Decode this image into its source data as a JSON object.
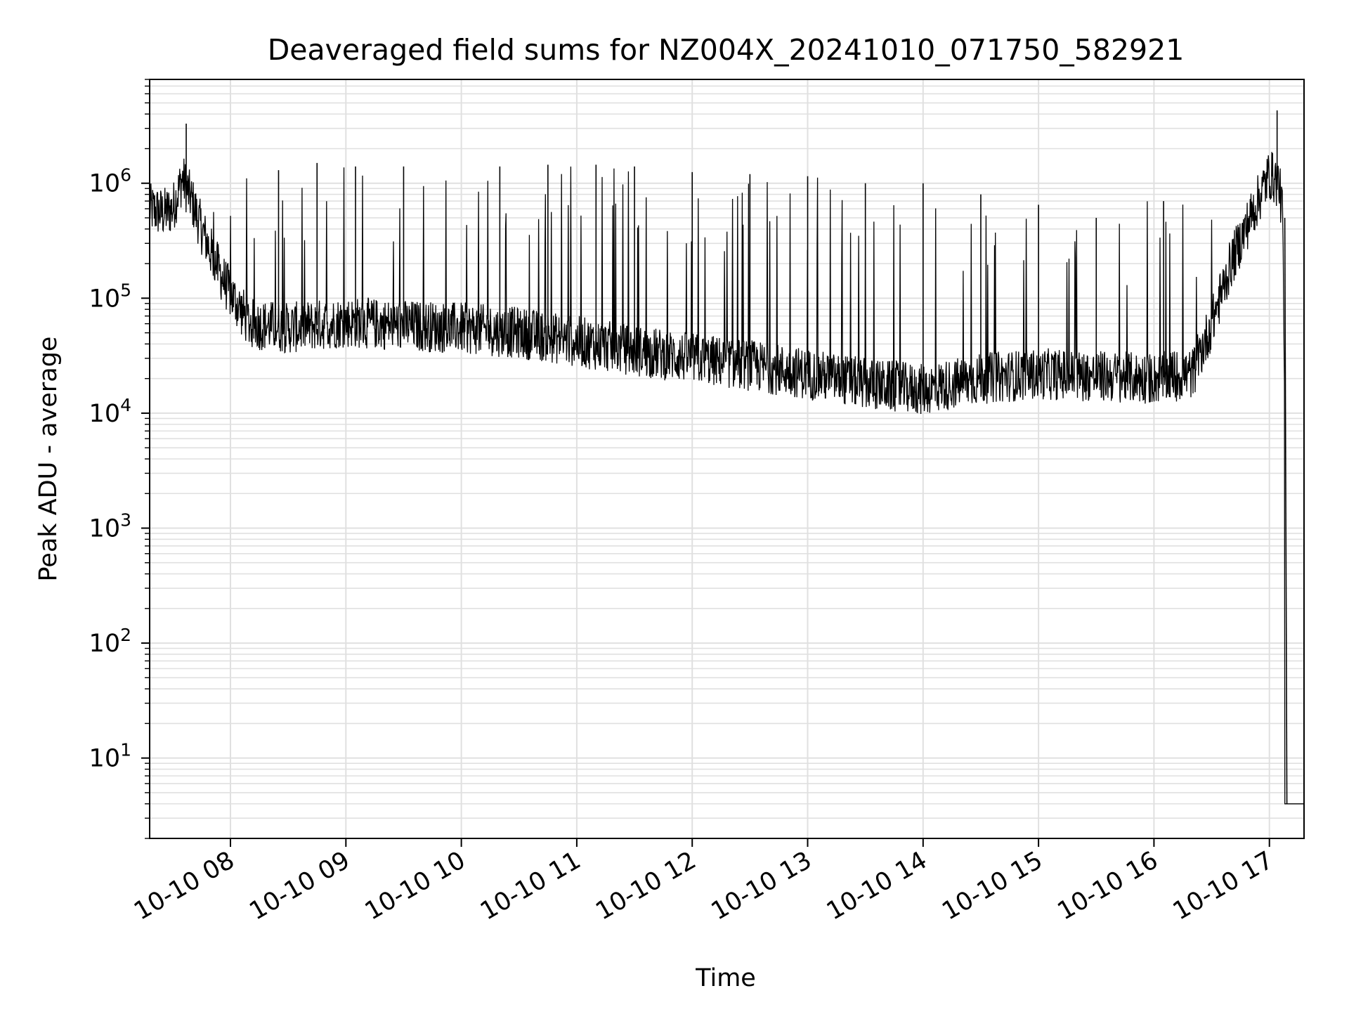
{
  "chart_data": {
    "type": "line",
    "title": "Deaveraged field sums for NZ004X_20241010_071750_582921",
    "xlabel": "Time",
    "ylabel": "Peak ADU - average",
    "yscale": "log",
    "xlim": [
      "2024-10-10 07:18",
      "2024-10-10 17:18"
    ],
    "ylim": [
      2,
      8000000
    ],
    "grid": "major and minor",
    "line_color": "#000000",
    "grid_color": "#e0e0e0",
    "x_ticks": [
      {
        "x": "2024-10-10 08:00",
        "label": "10-10 08"
      },
      {
        "x": "2024-10-10 09:00",
        "label": "10-10 09"
      },
      {
        "x": "2024-10-10 10:00",
        "label": "10-10 10"
      },
      {
        "x": "2024-10-10 11:00",
        "label": "10-10 11"
      },
      {
        "x": "2024-10-10 12:00",
        "label": "10-10 12"
      },
      {
        "x": "2024-10-10 13:00",
        "label": "10-10 13"
      },
      {
        "x": "2024-10-10 14:00",
        "label": "10-10 14"
      },
      {
        "x": "2024-10-10 15:00",
        "label": "10-10 15"
      },
      {
        "x": "2024-10-10 16:00",
        "label": "10-10 16"
      },
      {
        "x": "2024-10-10 17:00",
        "label": "10-10 17"
      }
    ],
    "y_ticks": [
      {
        "y": 10,
        "base": "10",
        "exp": "1"
      },
      {
        "y": 100,
        "base": "10",
        "exp": "2"
      },
      {
        "y": 1000,
        "base": "10",
        "exp": "3"
      },
      {
        "y": 10000,
        "base": "10",
        "exp": "4"
      },
      {
        "y": 100000,
        "base": "10",
        "exp": "5"
      },
      {
        "y": 1000000,
        "base": "10",
        "exp": "6"
      }
    ],
    "series": [
      {
        "x": [
          "2024-10-10 07:18",
          "2024-10-10 07:25",
          "2024-10-10 07:30",
          "2024-10-10 07:35",
          "2024-10-10 07:40",
          "2024-10-10 07:45",
          "2024-10-10 07:50",
          "2024-10-10 07:55",
          "2024-10-10 08:00",
          "2024-10-10 08:10",
          "2024-10-10 08:30",
          "2024-10-10 09:00",
          "2024-10-10 09:30",
          "2024-10-10 10:00",
          "2024-10-10 10:30",
          "2024-10-10 11:00",
          "2024-10-10 11:30",
          "2024-10-10 12:00",
          "2024-10-10 12:30",
          "2024-10-10 13:00",
          "2024-10-10 13:30",
          "2024-10-10 14:00",
          "2024-10-10 14:30",
          "2024-10-10 15:00",
          "2024-10-10 15:30",
          "2024-10-10 16:00",
          "2024-10-10 16:20",
          "2024-10-10 16:30",
          "2024-10-10 16:40",
          "2024-10-10 16:50",
          "2024-10-10 17:00",
          "2024-10-10 17:05",
          "2024-10-10 17:07",
          "2024-10-10 17:08",
          "2024-10-10 17:10",
          "2024-10-10 17:18"
        ],
        "y": [
          600000,
          550000,
          600000,
          1100000,
          700000,
          400000,
          250000,
          160000,
          110000,
          60000,
          55000,
          62000,
          58000,
          55000,
          50000,
          42000,
          35000,
          30000,
          26000,
          22000,
          18000,
          16000,
          20000,
          22000,
          21000,
          20000,
          22000,
          60000,
          200000,
          500000,
          1200000,
          1000000,
          500000,
          5000,
          4,
          4
        ]
      }
    ],
    "spikes": [
      {
        "x": "2024-10-10 07:37",
        "y": 3300000
      },
      {
        "x": "2024-10-10 08:25",
        "y": 1300000
      },
      {
        "x": "2024-10-10 08:45",
        "y": 1500000
      },
      {
        "x": "2024-10-10 09:05",
        "y": 1400000
      },
      {
        "x": "2024-10-10 09:30",
        "y": 1400000
      },
      {
        "x": "2024-10-10 10:20",
        "y": 1400000
      },
      {
        "x": "2024-10-10 10:45",
        "y": 1450000
      },
      {
        "x": "2024-10-10 11:10",
        "y": 1450000
      },
      {
        "x": "2024-10-10 11:30",
        "y": 1400000
      },
      {
        "x": "2024-10-10 12:00",
        "y": 1250000
      },
      {
        "x": "2024-10-10 12:30",
        "y": 1200000
      },
      {
        "x": "2024-10-10 13:00",
        "y": 1150000
      },
      {
        "x": "2024-10-10 13:30",
        "y": 1000000
      },
      {
        "x": "2024-10-10 14:00",
        "y": 1000000
      },
      {
        "x": "2024-10-10 14:30",
        "y": 800000
      },
      {
        "x": "2024-10-10 15:00",
        "y": 650000
      },
      {
        "x": "2024-10-10 15:30",
        "y": 500000
      },
      {
        "x": "2024-10-10 16:05",
        "y": 700000
      },
      {
        "x": "2024-10-10 17:04",
        "y": 4300000
      }
    ]
  }
}
